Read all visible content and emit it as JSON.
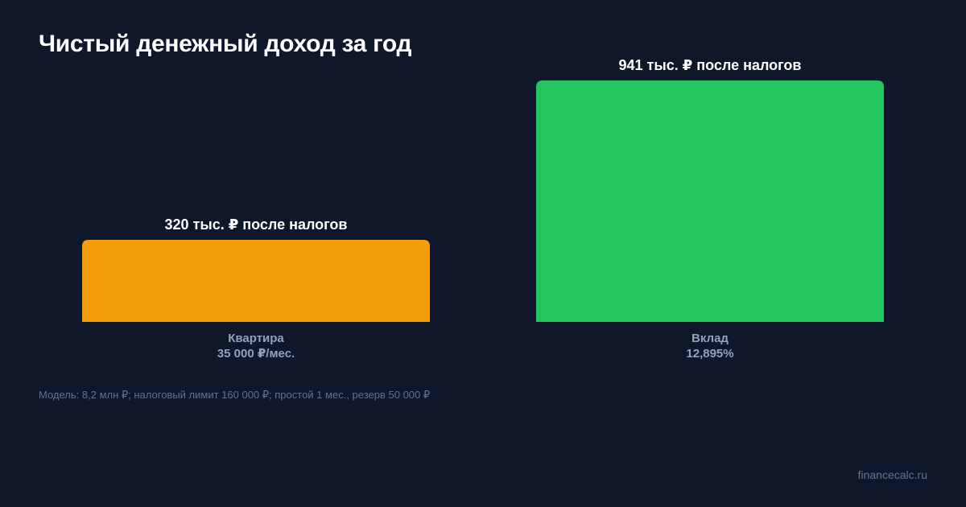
{
  "chart_data": {
    "type": "bar",
    "title": "Чистый денежный доход за год",
    "categories": [
      "Квартира",
      "Вклад"
    ],
    "sublabels": [
      "35 000 ₽/мес.",
      "12,895%"
    ],
    "values": [
      320,
      941
    ],
    "value_labels": [
      "320 тыс. ₽ после налогов",
      "941 тыс. ₽ после налогов"
    ],
    "colors": [
      "#f59e0b",
      "#22c55e"
    ],
    "ylim": [
      0,
      941
    ],
    "grid": false,
    "legend": "none"
  },
  "footnote": "Модель: 8,2 млн ₽; налоговый лимит 160 000 ₽; простой 1 мес., резерв 50 000 ₽",
  "brand": "financecalc.ru"
}
